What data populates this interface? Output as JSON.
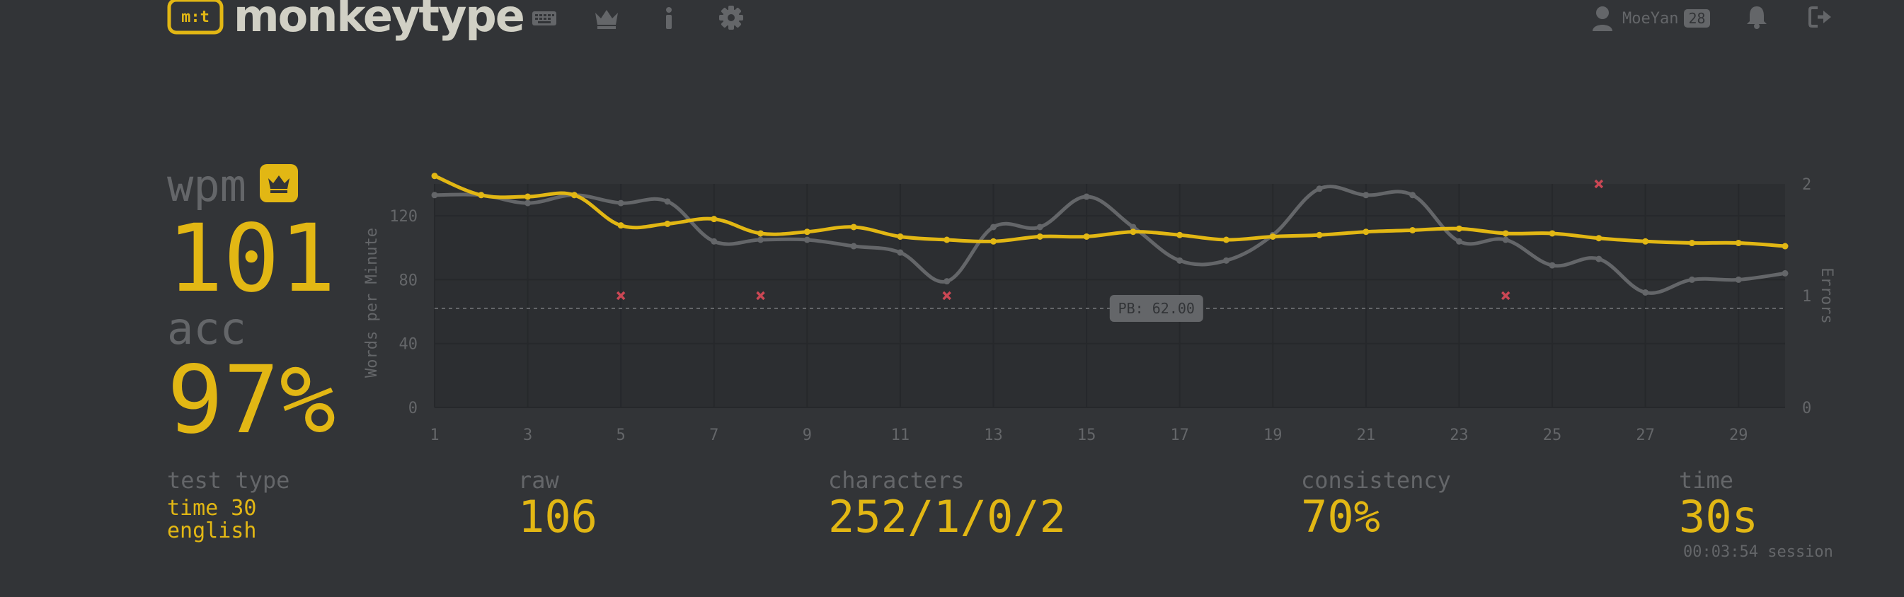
{
  "header": {
    "brand": "monkeytype",
    "username": "MoeYan",
    "level": "28"
  },
  "results": {
    "wpm_label": "wpm",
    "wpm": "101",
    "acc_label": "acc",
    "acc": "97%",
    "test_type_label": "test type",
    "test_type_mode": "time 30",
    "test_type_language": "english",
    "raw_label": "raw",
    "raw": "106",
    "characters_label": "characters",
    "characters": "252/1/0/2",
    "consistency_label": "consistency",
    "consistency": "70%",
    "time_label": "time",
    "time": "30s",
    "session": "00:03:54 session"
  },
  "colors": {
    "background": "#323437",
    "chart_background": "#2c2e31",
    "main": "#e2b714",
    "sub": "#646669",
    "text": "#d1d0c5",
    "error": "#ca4754"
  },
  "icons": [
    "keyboard-icon",
    "crown-icon",
    "info-icon",
    "gear-icon",
    "user-icon",
    "bell-icon",
    "logout-icon"
  ],
  "chart_data": {
    "type": "line",
    "title": "",
    "xlabel": "",
    "ylabel": "Words per Minute",
    "y2label": "Errors",
    "x": [
      1,
      2,
      3,
      4,
      5,
      6,
      7,
      8,
      9,
      10,
      11,
      12,
      13,
      14,
      15,
      16,
      17,
      18,
      19,
      20,
      21,
      22,
      23,
      24,
      25,
      26,
      27,
      28,
      29,
      30
    ],
    "x_ticks": [
      1,
      3,
      5,
      7,
      9,
      11,
      13,
      15,
      17,
      19,
      21,
      23,
      25,
      27,
      29
    ],
    "y_ticks": [
      0,
      40,
      80,
      120
    ],
    "y2_ticks": [
      0,
      1,
      2
    ],
    "ylim": [
      0,
      140
    ],
    "y2lim": [
      0,
      2
    ],
    "series": [
      {
        "values": [
          145,
          133,
          132,
          133,
          114,
          115,
          118,
          109,
          110,
          113,
          107,
          105,
          104,
          107,
          107,
          110,
          108,
          105,
          107,
          108,
          110,
          111,
          112,
          109,
          109,
          106,
          104,
          103,
          103,
          101
        ],
        "color": "#e2b714"
      },
      {
        "values": [
          133,
          133,
          128,
          133,
          128,
          129,
          104,
          105,
          105,
          101,
          97,
          79,
          113,
          113,
          132,
          113,
          92,
          92,
          108,
          137,
          133,
          133,
          104,
          105,
          89,
          93,
          72,
          80,
          80,
          84
        ],
        "color": "#646669"
      }
    ],
    "errors": [
      {
        "x": 5,
        "count": 1
      },
      {
        "x": 8,
        "count": 1
      },
      {
        "x": 12,
        "count": 1
      },
      {
        "x": 24,
        "count": 1
      },
      {
        "x": 26,
        "count": 2
      }
    ],
    "pb_line": {
      "value": 62,
      "label": "PB: 62.00"
    },
    "grid": true
  }
}
